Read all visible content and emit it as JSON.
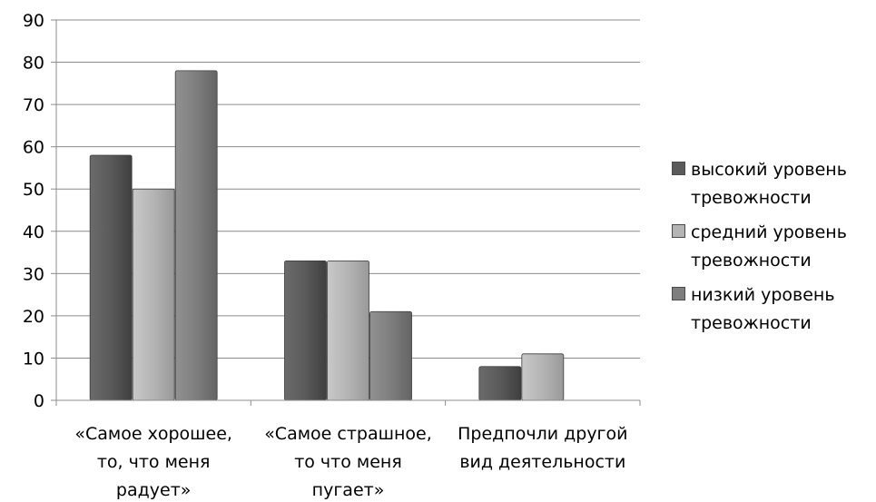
{
  "chart_data": {
    "type": "bar",
    "categories": [
      [
        "«Самое хорошее,",
        "то, что меня",
        "радует»"
      ],
      [
        "«Самое страшное,",
        "то что меня",
        "пугает»"
      ],
      [
        "Предпочли другой",
        "вид деятельности",
        ""
      ]
    ],
    "series": [
      {
        "name": "высокий уровень тревожности",
        "color": "#5a5a5a",
        "values": [
          58,
          33,
          8
        ]
      },
      {
        "name": "средний уровень тревожности",
        "color": "#b4b4b4",
        "values": [
          50,
          33,
          11
        ]
      },
      {
        "name": "низкий уровень тревожности",
        "color": "#7e7e7e",
        "values": [
          78,
          21,
          0
        ]
      }
    ],
    "ylim": [
      0,
      90
    ],
    "yticks": [
      0,
      10,
      20,
      30,
      40,
      50,
      60,
      70,
      80,
      90
    ],
    "grid": true,
    "legend": "right"
  },
  "legend": {
    "items": [
      {
        "line1": "высокий уровень",
        "line2": "тревожности",
        "color": "#5a5a5a"
      },
      {
        "line1": "средний уровень",
        "line2": "тревожности",
        "color": "#b4b4b4"
      },
      {
        "line1": "низкий уровень",
        "line2": "тревожности",
        "color": "#7e7e7e"
      }
    ]
  }
}
